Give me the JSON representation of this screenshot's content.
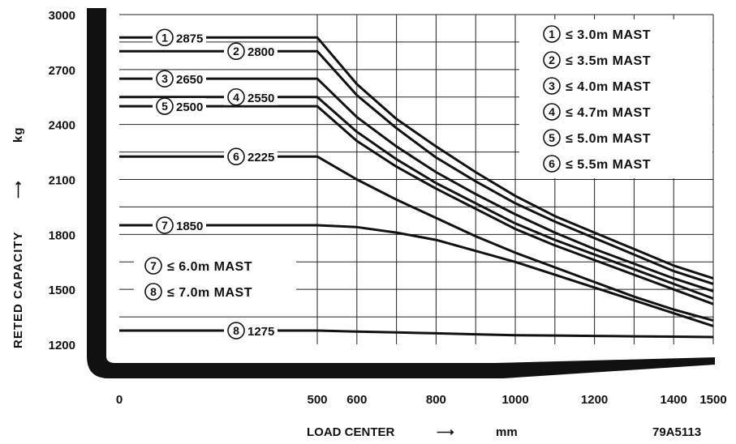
{
  "chart_data": {
    "type": "line",
    "title": "",
    "xlabel": "LOAD CENTER",
    "xunit": "mm",
    "ylabel": "RETED CAPACITY",
    "yunit": "kg",
    "code": "79A5113",
    "xlim": [
      0,
      1500
    ],
    "ylim": [
      1200,
      3000
    ],
    "x_ticks": [
      "0",
      "500",
      "600",
      "800",
      "1000",
      "1200",
      "1400",
      "1500"
    ],
    "y_ticks": [
      "1200",
      "1500",
      "1800",
      "2100",
      "2400",
      "2700",
      "3000"
    ],
    "grid": true,
    "legend_position": "top-right",
    "series": [
      {
        "name": "≤ 3.0m MAST",
        "marker": "1",
        "value_label": "2875",
        "x": [
          0,
          500,
          600,
          700,
          800,
          900,
          1000,
          1100,
          1200,
          1300,
          1400,
          1500
        ],
        "y": [
          2875,
          2875,
          2620,
          2430,
          2280,
          2140,
          2010,
          1900,
          1810,
          1720,
          1630,
          1560
        ]
      },
      {
        "name": "≤ 3.5m MAST",
        "marker": "2",
        "value_label": "2800",
        "x": [
          0,
          500,
          600,
          700,
          800,
          900,
          1000,
          1100,
          1200,
          1300,
          1400,
          1500
        ],
        "y": [
          2800,
          2800,
          2560,
          2380,
          2220,
          2090,
          1970,
          1870,
          1780,
          1690,
          1600,
          1530
        ]
      },
      {
        "name": "≤ 4.0m MAST",
        "marker": "3",
        "value_label": "2650",
        "x": [
          0,
          500,
          600,
          700,
          800,
          900,
          1000,
          1100,
          1200,
          1300,
          1400,
          1500
        ],
        "y": [
          2650,
          2650,
          2440,
          2280,
          2140,
          2020,
          1910,
          1810,
          1720,
          1640,
          1560,
          1490
        ]
      },
      {
        "name": "≤ 4.7m MAST",
        "marker": "4",
        "value_label": "2550",
        "x": [
          0,
          500,
          600,
          700,
          800,
          900,
          1000,
          1100,
          1200,
          1300,
          1400,
          1500
        ],
        "y": [
          2550,
          2550,
          2360,
          2210,
          2080,
          1970,
          1860,
          1770,
          1690,
          1610,
          1530,
          1450
        ]
      },
      {
        "name": "≤ 5.0m MAST",
        "marker": "5",
        "value_label": "2500",
        "x": [
          0,
          500,
          600,
          700,
          800,
          900,
          1000,
          1100,
          1200,
          1300,
          1400,
          1500
        ],
        "y": [
          2500,
          2500,
          2310,
          2170,
          2050,
          1940,
          1830,
          1740,
          1660,
          1580,
          1500,
          1420
        ]
      },
      {
        "name": "≤ 5.5m MAST",
        "marker": "6",
        "value_label": "2225",
        "x": [
          0,
          500,
          600,
          700,
          800,
          900,
          1000,
          1100,
          1200,
          1300,
          1400,
          1500
        ],
        "y": [
          2225,
          2225,
          2100,
          1990,
          1890,
          1790,
          1700,
          1620,
          1540,
          1460,
          1390,
          1330
        ]
      },
      {
        "name": "≤ 6.0m MAST",
        "marker": "7",
        "value_label": "1850",
        "x": [
          0,
          500,
          600,
          700,
          800,
          900,
          1000,
          1100,
          1200,
          1300,
          1400,
          1500
        ],
        "y": [
          1850,
          1850,
          1840,
          1810,
          1770,
          1710,
          1650,
          1580,
          1510,
          1440,
          1370,
          1300
        ]
      },
      {
        "name": "≤ 7.0m MAST",
        "marker": "8",
        "value_label": "1275",
        "x": [
          0,
          500,
          600,
          700,
          800,
          900,
          1000,
          1100,
          1200,
          1300,
          1400,
          1500
        ],
        "y": [
          1275,
          1275,
          1270,
          1265,
          1260,
          1255,
          1250,
          1248,
          1246,
          1244,
          1242,
          1240
        ]
      }
    ]
  }
}
